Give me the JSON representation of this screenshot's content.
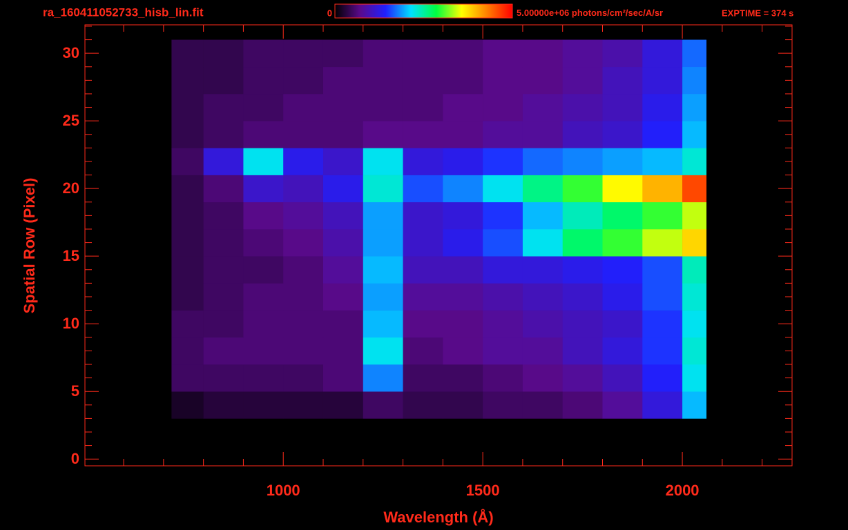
{
  "chart_data": {
    "type": "heatmap",
    "title": "ra_160411052733_hisb_lin.fit",
    "exposure": "EXPTIME = 374 s",
    "xlabel": "Wavelength (Å)",
    "ylabel": "Spatial Row (Pixel)",
    "xlim": [
      503,
      2275
    ],
    "ylim": [
      -0.5,
      32.1
    ],
    "xticks": [
      1000,
      1500,
      2000
    ],
    "yticks": [
      0,
      5,
      10,
      15,
      20,
      25,
      30
    ],
    "xminorticks": [
      600,
      700,
      800,
      900,
      1100,
      1200,
      1300,
      1400,
      1600,
      1700,
      1800,
      1900,
      2100,
      2200
    ],
    "yminorticks": [
      1,
      2,
      3,
      4,
      6,
      7,
      8,
      9,
      11,
      12,
      13,
      14,
      16,
      17,
      18,
      19,
      21,
      22,
      23,
      24,
      26,
      27,
      28,
      29,
      31,
      32
    ],
    "x_edges": [
      720,
      800,
      900,
      1000,
      1100,
      1200,
      1300,
      1400,
      1500,
      1600,
      1700,
      1800,
      1900,
      2000,
      2060
    ],
    "y_edges": [
      3,
      5,
      7,
      9,
      11,
      13,
      15,
      17,
      19,
      21,
      23,
      25,
      27,
      29,
      31
    ],
    "zlim": [
      0,
      5000000
    ],
    "colorbar_ticks": [
      0,
      {
        "value": 5000000,
        "label": "5.00000e+06"
      }
    ],
    "colorbar_unit": "photons/cm²/sec/A/sr",
    "colormap": [
      "#000000",
      "#5a0a8c",
      "#2020ff",
      "#00e0ff",
      "#00ff40",
      "#ffff00",
      "#ff8000",
      "#ff0000"
    ],
    "color": "#ff2a1a",
    "values": [
      [
        200000,
        300000,
        300000,
        300000,
        300000,
        500000,
        400000,
        400000,
        500000,
        500000,
        600000,
        800000,
        1200000,
        2000000
      ],
      [
        500000,
        500000,
        500000,
        500000,
        600000,
        1800000,
        500000,
        500000,
        600000,
        700000,
        800000,
        1000000,
        1400000,
        2200000
      ],
      [
        500000,
        600000,
        600000,
        600000,
        600000,
        2200000,
        600000,
        700000,
        800000,
        800000,
        1000000,
        1200000,
        1500000,
        2300000
      ],
      [
        500000,
        500000,
        600000,
        600000,
        600000,
        2000000,
        700000,
        700000,
        800000,
        900000,
        1000000,
        1100000,
        1500000,
        2200000
      ],
      [
        400000,
        500000,
        600000,
        600000,
        700000,
        1900000,
        800000,
        800000,
        900000,
        1000000,
        1100000,
        1300000,
        1600000,
        2300000
      ],
      [
        400000,
        500000,
        500000,
        600000,
        800000,
        2000000,
        1000000,
        1000000,
        1200000,
        1200000,
        1300000,
        1400000,
        1600000,
        2400000
      ],
      [
        400000,
        500000,
        600000,
        700000,
        900000,
        1900000,
        1100000,
        1300000,
        1600000,
        2200000,
        2700000,
        3000000,
        3400000,
        3800000
      ],
      [
        400000,
        500000,
        700000,
        800000,
        1000000,
        1900000,
        1100000,
        1200000,
        1500000,
        2000000,
        2400000,
        2700000,
        3000000,
        3400000
      ],
      [
        400000,
        600000,
        1100000,
        1000000,
        1300000,
        2300000,
        1600000,
        1800000,
        2200000,
        2600000,
        3000000,
        3600000,
        4000000,
        4600000
      ],
      [
        500000,
        1200000,
        2200000,
        1300000,
        1100000,
        2200000,
        1200000,
        1300000,
        1500000,
        1700000,
        1800000,
        1900000,
        2000000,
        2300000
      ],
      [
        400000,
        500000,
        600000,
        600000,
        600000,
        700000,
        700000,
        700000,
        800000,
        800000,
        1000000,
        1100000,
        1400000,
        2000000
      ],
      [
        400000,
        500000,
        500000,
        600000,
        600000,
        600000,
        600000,
        700000,
        700000,
        800000,
        900000,
        1000000,
        1300000,
        1900000
      ],
      [
        400000,
        400000,
        500000,
        500000,
        600000,
        600000,
        600000,
        600000,
        700000,
        700000,
        800000,
        1000000,
        1200000,
        1800000
      ],
      [
        400000,
        400000,
        500000,
        500000,
        500000,
        600000,
        600000,
        600000,
        700000,
        700000,
        800000,
        900000,
        1200000,
        1700000
      ]
    ]
  }
}
